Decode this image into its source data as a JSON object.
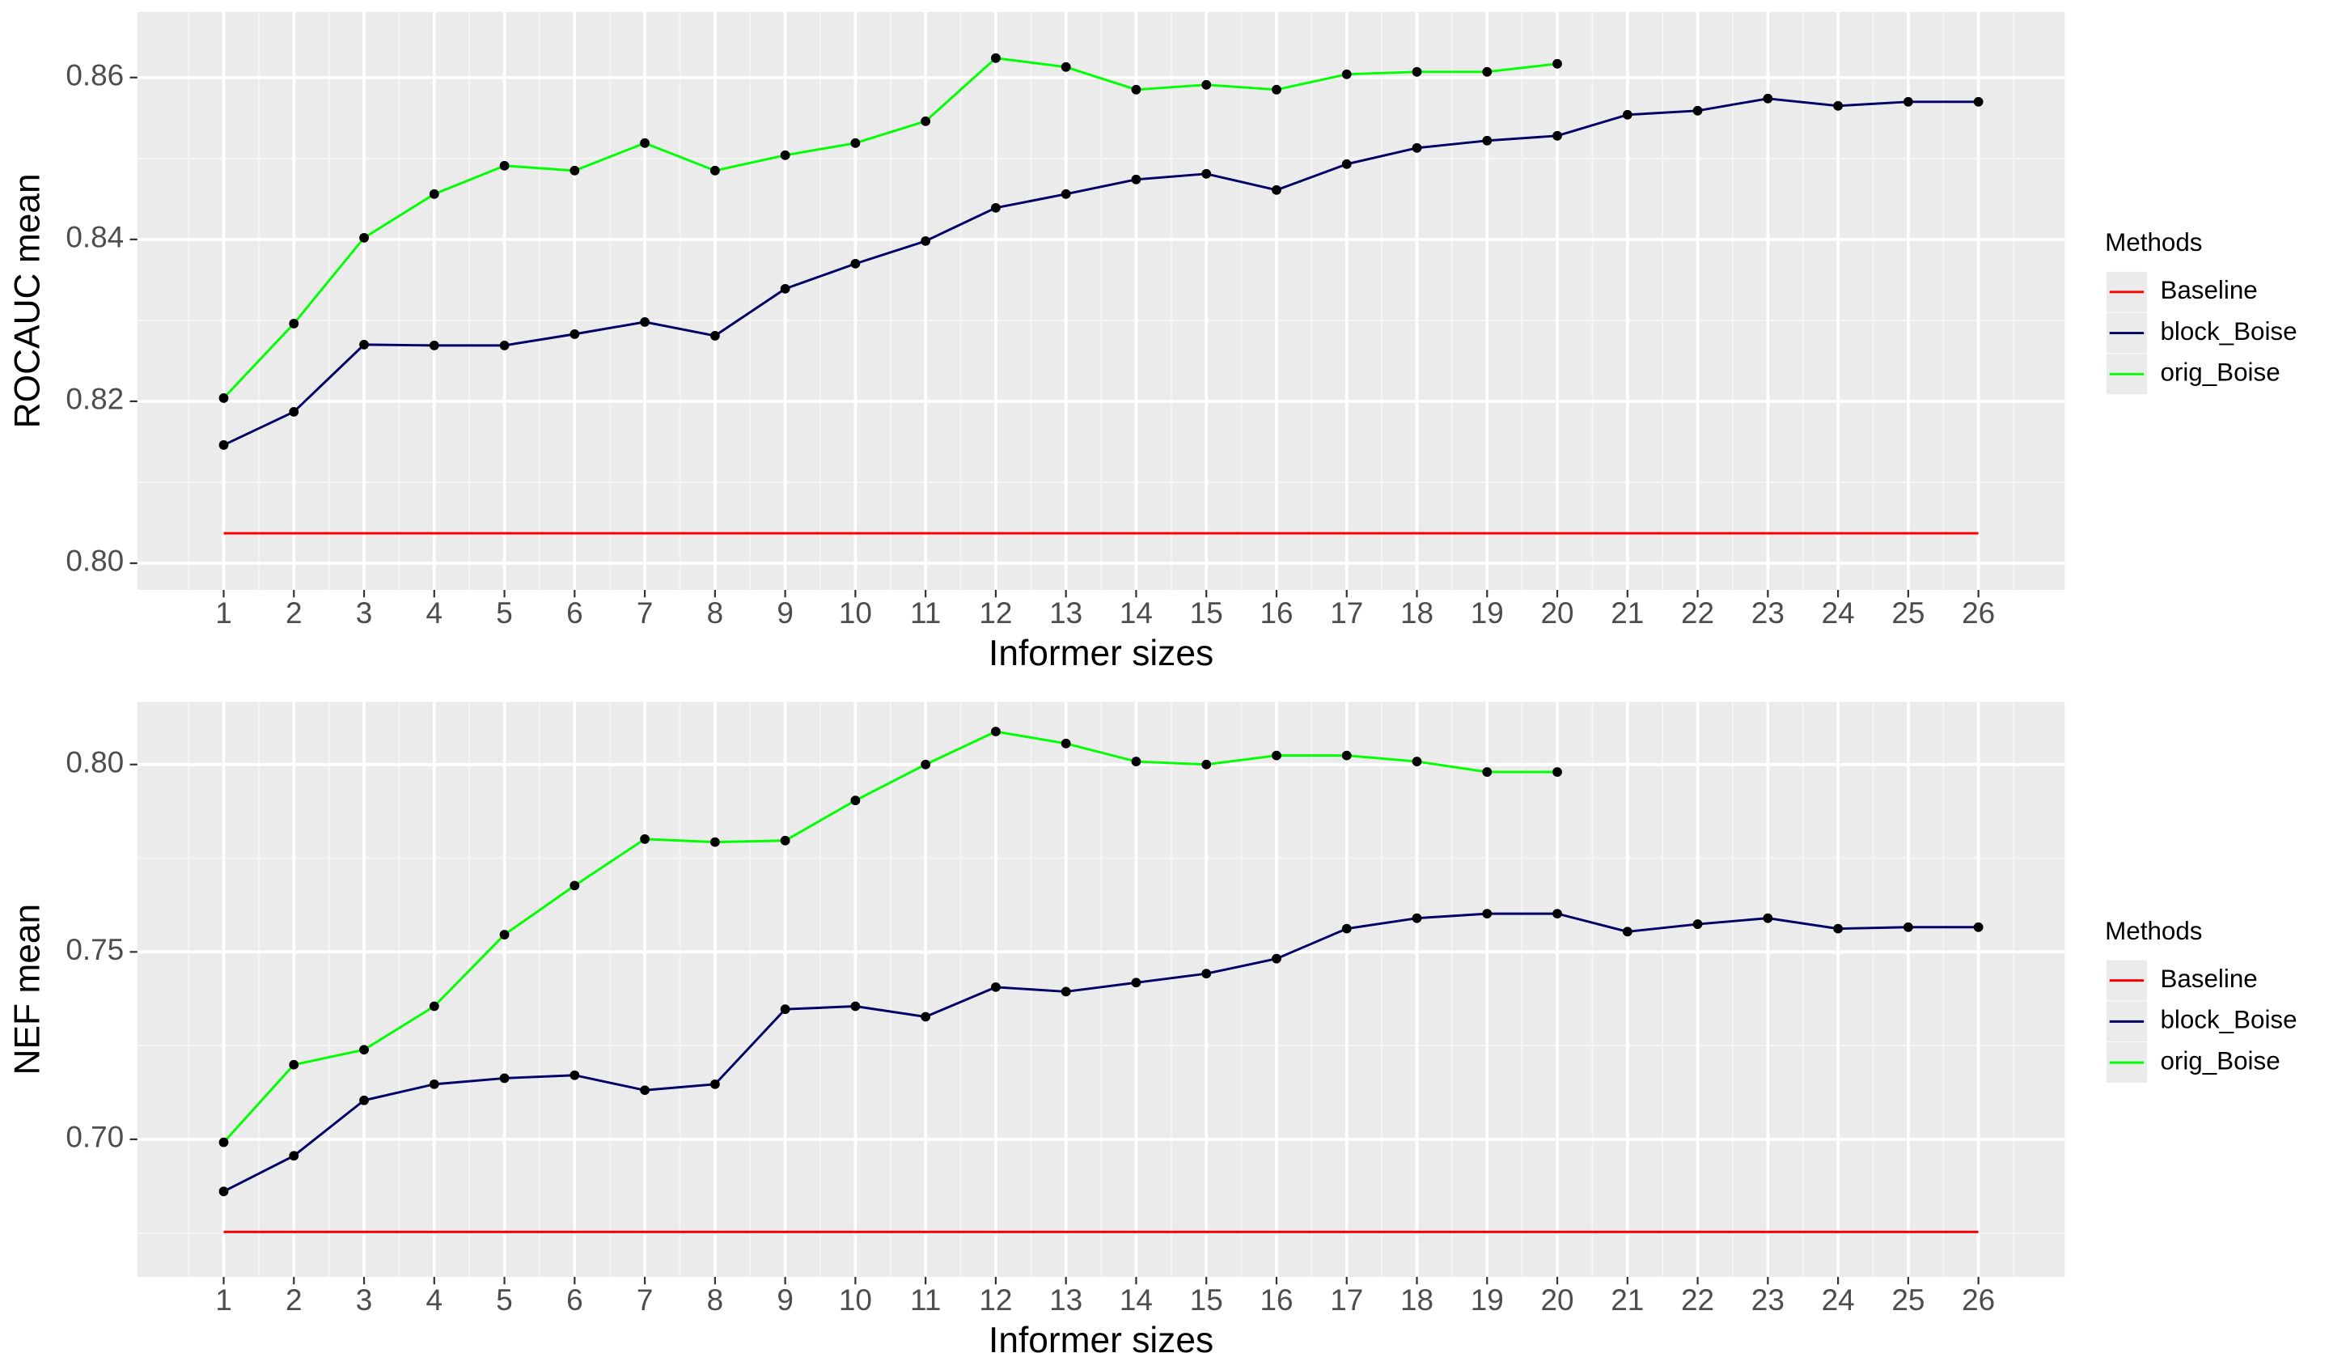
{
  "chart_data": [
    {
      "type": "line",
      "x_label": "Informer sizes",
      "y_label": "ROCAUC mean",
      "legend_title": "Methods",
      "x": [
        1,
        2,
        3,
        4,
        5,
        6,
        7,
        8,
        9,
        10,
        11,
        12,
        13,
        14,
        15,
        16,
        17,
        18,
        19,
        20,
        21,
        22,
        23,
        24,
        25,
        26
      ],
      "xlim": [
        -0.23,
        27.23
      ],
      "xticks": [
        1,
        2,
        3,
        4,
        5,
        6,
        7,
        8,
        9,
        10,
        11,
        12,
        13,
        14,
        15,
        16,
        17,
        18,
        19,
        20,
        21,
        22,
        23,
        24,
        25,
        26
      ],
      "ylim": [
        0.7967,
        0.8681
      ],
      "yticks": [
        {
          "value": 0.8,
          "label": "0.80"
        },
        0.82,
        0.84,
        0.86
      ],
      "grid": true,
      "series": [
        {
          "name": "Baseline",
          "color": "#ff0000",
          "points": false,
          "values": [
            0.8037,
            0.8037,
            0.8037,
            0.8037,
            0.8037,
            0.8037,
            0.8037,
            0.8037,
            0.8037,
            0.8037,
            0.8037,
            0.8037,
            0.8037,
            0.8037,
            0.8037,
            0.8037,
            0.8037,
            0.8037,
            0.8037,
            0.8037,
            0.8037,
            0.8037,
            0.8037,
            0.8037,
            0.8037,
            0.8037
          ]
        },
        {
          "name": "block_Boise",
          "color": "#000066",
          "points": true,
          "values": [
            0.8146,
            0.8187,
            0.827,
            0.8269,
            0.8269,
            0.8283,
            0.8298,
            0.8281,
            0.8339,
            0.837,
            0.8398,
            0.8439,
            0.8456,
            0.8474,
            0.8481,
            0.8461,
            0.8493,
            0.8513,
            0.8522,
            0.8528,
            0.8554,
            0.8559,
            0.8574,
            0.8565,
            0.857,
            0.857
          ]
        },
        {
          "name": "orig_Boise",
          "color": "#00ff00",
          "points": true,
          "values": [
            0.8204,
            0.8296,
            0.8402,
            0.8456,
            0.8491,
            0.8485,
            0.8519,
            0.8485,
            0.8504,
            0.8519,
            0.8546,
            0.8624,
            0.8613,
            0.8585,
            0.8591,
            0.8585,
            0.8604,
            0.8607,
            0.8607,
            0.8617,
            null,
            null,
            null,
            null,
            null,
            null
          ]
        }
      ]
    },
    {
      "type": "line",
      "x_label": "Informer sizes",
      "y_label": "NEF mean",
      "legend_title": "Methods",
      "x": [
        1,
        2,
        3,
        4,
        5,
        6,
        7,
        8,
        9,
        10,
        11,
        12,
        13,
        14,
        15,
        16,
        17,
        18,
        19,
        20,
        21,
        22,
        23,
        24,
        25,
        26
      ],
      "xlim": [
        -0.23,
        27.23
      ],
      "xticks": [
        1,
        2,
        3,
        4,
        5,
        6,
        7,
        8,
        9,
        10,
        11,
        12,
        13,
        14,
        15,
        16,
        17,
        18,
        19,
        20,
        21,
        22,
        23,
        24,
        25,
        26
      ],
      "ylim": [
        0.6633,
        0.8167
      ],
      "yticks": [
        {
          "value": 0.7,
          "label": "0.70"
        },
        0.75,
        {
          "value": 0.8,
          "label": "0.80"
        }
      ],
      "grid": true,
      "series": [
        {
          "name": "Baseline",
          "color": "#ff0000",
          "points": false,
          "values": [
            0.6753,
            0.6753,
            0.6753,
            0.6753,
            0.6753,
            0.6753,
            0.6753,
            0.6753,
            0.6753,
            0.6753,
            0.6753,
            0.6753,
            0.6753,
            0.6753,
            0.6753,
            0.6753,
            0.6753,
            0.6753,
            0.6753,
            0.6753,
            0.6753,
            0.6753,
            0.6753,
            0.6753,
            0.6753,
            0.6753
          ]
        },
        {
          "name": "block_Boise",
          "color": "#000066",
          "points": true,
          "values": [
            0.6861,
            0.6956,
            0.7104,
            0.7147,
            0.7163,
            0.7171,
            0.7131,
            0.7147,
            0.7347,
            0.7355,
            0.7327,
            0.7406,
            0.7394,
            0.7418,
            0.7442,
            0.7482,
            0.7562,
            0.759,
            0.7602,
            0.7602,
            0.7554,
            0.7574,
            0.759,
            0.7562,
            0.7566,
            0.7566
          ]
        },
        {
          "name": "orig_Boise",
          "color": "#00ff00",
          "points": true,
          "values": [
            0.6992,
            0.7199,
            0.7239,
            0.7355,
            0.7546,
            0.7677,
            0.7801,
            0.7793,
            0.7797,
            0.7904,
            0.8,
            0.8088,
            0.8056,
            0.8008,
            0.8,
            0.8024,
            0.8024,
            0.8008,
            0.798,
            0.798,
            null,
            null,
            null,
            null,
            null,
            null
          ]
        }
      ]
    }
  ]
}
